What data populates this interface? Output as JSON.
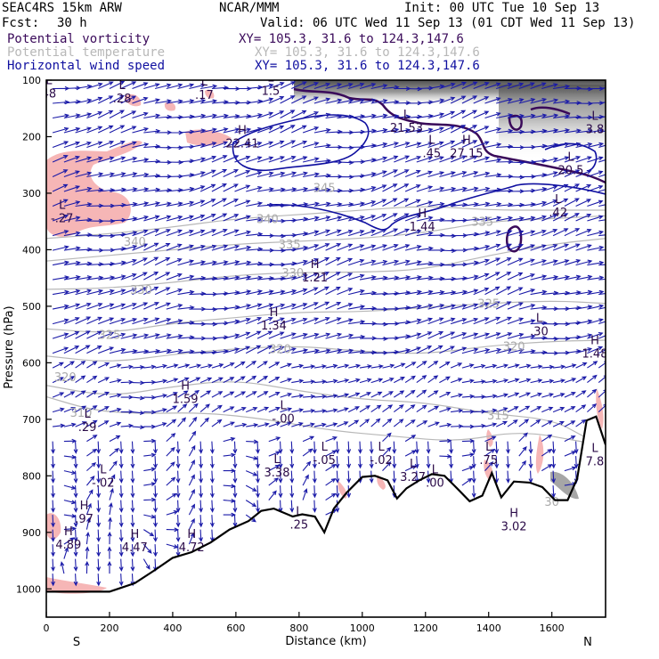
{
  "header": {
    "model": "SEAC4RS 15km ARW",
    "org": "NCAR/MMM",
    "init": "Init: 00 UTC Tue 10 Sep 13",
    "fcst_label": "Fcst:",
    "fcst_value": "30 h",
    "valid": "Valid: 06 UTC Wed 11 Sep 13 (01 CDT Wed 11 Sep 13)"
  },
  "legend": [
    {
      "field": "Potential vorticity",
      "xy": "XY= 105.3, 31.6 to 124.3,147.6",
      "color": "#3a0a5a"
    },
    {
      "field": "Potential temperature",
      "xy": "XY= 105.3, 31.6 to 124.3,147.6",
      "color": "#b8b8b8"
    },
    {
      "field": "Horizontal wind speed",
      "xy": "XY= 105.3, 31.6 to 124.3,147.6",
      "color": "#1010a0"
    }
  ],
  "chart_data": {
    "type": "cross-section",
    "xlabel": "Distance (km)",
    "ylabel": "Pressure (hPa)",
    "xlim": [
      0,
      1770
    ],
    "ylim": [
      1050,
      100
    ],
    "x_ticks": [
      0,
      200,
      400,
      600,
      800,
      1000,
      1200,
      1400,
      1600
    ],
    "y_ticks": [
      100,
      200,
      300,
      400,
      500,
      600,
      700,
      800,
      900,
      1000
    ],
    "left_end_label": "S",
    "right_end_label": "N",
    "terrain": [
      [
        0,
        1005
      ],
      [
        100,
        1005
      ],
      [
        200,
        1005
      ],
      [
        280,
        990
      ],
      [
        340,
        968
      ],
      [
        400,
        945
      ],
      [
        460,
        935
      ],
      [
        520,
        918
      ],
      [
        580,
        895
      ],
      [
        640,
        880
      ],
      [
        680,
        862
      ],
      [
        720,
        858
      ],
      [
        780,
        872
      ],
      [
        810,
        868
      ],
      [
        850,
        872
      ],
      [
        880,
        900
      ],
      [
        910,
        858
      ],
      [
        950,
        830
      ],
      [
        1000,
        802
      ],
      [
        1040,
        800
      ],
      [
        1080,
        808
      ],
      [
        1110,
        840
      ],
      [
        1140,
        822
      ],
      [
        1180,
        808
      ],
      [
        1220,
        797
      ],
      [
        1260,
        800
      ],
      [
        1300,
        822
      ],
      [
        1340,
        845
      ],
      [
        1380,
        835
      ],
      [
        1410,
        795
      ],
      [
        1440,
        838
      ],
      [
        1480,
        810
      ],
      [
        1530,
        812
      ],
      [
        1570,
        820
      ],
      [
        1610,
        843
      ],
      [
        1650,
        843
      ],
      [
        1680,
        805
      ],
      [
        1710,
        702
      ],
      [
        1740,
        695
      ],
      [
        1770,
        745
      ]
    ],
    "theta_isentropes": [
      {
        "level": "310",
        "points": [
          [
            0,
            660
          ],
          [
            150,
            685
          ],
          [
            300,
            690
          ],
          [
            500,
            688
          ],
          [
            700,
            700
          ],
          [
            900,
            720
          ],
          [
            1100,
            730
          ],
          [
            1300,
            740
          ],
          [
            1500,
            720
          ],
          [
            1700,
            740
          ]
        ]
      },
      {
        "level": "315",
        "points": [
          [
            0,
            640
          ],
          [
            200,
            660
          ],
          [
            400,
            642
          ],
          [
            600,
            630
          ],
          [
            800,
            650
          ],
          [
            1000,
            665
          ],
          [
            1200,
            670
          ],
          [
            1400,
            690
          ],
          [
            1600,
            700
          ],
          [
            1700,
            730
          ]
        ]
      },
      {
        "level": "320",
        "points": [
          [
            0,
            588
          ],
          [
            200,
            600
          ],
          [
            400,
            585
          ],
          [
            600,
            575
          ],
          [
            800,
            570
          ],
          [
            1000,
            580
          ],
          [
            1200,
            585
          ],
          [
            1400,
            570
          ],
          [
            1600,
            562
          ],
          [
            1770,
            560
          ]
        ]
      },
      {
        "level": "325",
        "points": [
          [
            0,
            540
          ],
          [
            200,
            548
          ],
          [
            400,
            530
          ],
          [
            600,
            520
          ],
          [
            800,
            510
          ],
          [
            1000,
            510
          ],
          [
            1200,
            502
          ],
          [
            1400,
            495
          ],
          [
            1600,
            490
          ],
          [
            1770,
            495
          ]
        ]
      },
      {
        "level": "330",
        "points": [
          [
            0,
            470
          ],
          [
            200,
            468
          ],
          [
            400,
            458
          ],
          [
            600,
            445
          ],
          [
            800,
            440
          ],
          [
            1000,
            440
          ],
          [
            1200,
            435
          ],
          [
            1400,
            410
          ],
          [
            1600,
            390
          ],
          [
            1770,
            380
          ]
        ]
      },
      {
        "level": "335",
        "points": [
          [
            0,
            420
          ],
          [
            200,
            410
          ],
          [
            400,
            400
          ],
          [
            600,
            390
          ],
          [
            800,
            385
          ],
          [
            1000,
            380
          ],
          [
            1200,
            370
          ],
          [
            1400,
            350
          ],
          [
            1600,
            345
          ],
          [
            1770,
            340
          ]
        ]
      },
      {
        "level": "340",
        "points": [
          [
            0,
            380
          ],
          [
            200,
            372
          ],
          [
            400,
            360
          ],
          [
            600,
            345
          ],
          [
            800,
            338
          ],
          [
            1000,
            330
          ],
          [
            1200,
            322
          ],
          [
            1400,
            330
          ],
          [
            1600,
            330
          ],
          [
            1770,
            330
          ]
        ]
      }
    ],
    "isentrope_labels": [
      {
        "text": "310",
        "x": 110,
        "p": 688
      },
      {
        "text": "315",
        "x": 1430,
        "p": 692
      },
      {
        "text": "320",
        "x": 60,
        "p": 625
      },
      {
        "text": "320",
        "x": 740,
        "p": 575
      },
      {
        "text": "320",
        "x": 1480,
        "p": 570
      },
      {
        "text": "325",
        "x": 200,
        "p": 550
      },
      {
        "text": "325",
        "x": 1400,
        "p": 495
      },
      {
        "text": "330",
        "x": 300,
        "p": 470
      },
      {
        "text": "330",
        "x": 780,
        "p": 440
      },
      {
        "text": "335",
        "x": 770,
        "p": 390
      },
      {
        "text": "335",
        "x": 1380,
        "p": 350
      },
      {
        "text": "340",
        "x": 280,
        "p": 385
      },
      {
        "text": "340",
        "x": 700,
        "p": 345
      },
      {
        "text": "345",
        "x": 880,
        "p": 290
      },
      {
        "text": "30",
        "x": 1600,
        "p": 845
      }
    ],
    "extrema_labels": [
      {
        "type": "L",
        "value": "48",
        "x": 8,
        "p": 120
      },
      {
        "type": "L",
        "value": ".28",
        "x": 240,
        "p": 128
      },
      {
        "type": "L",
        "value": ".17",
        "x": 500,
        "p": 122
      },
      {
        "type": "L",
        "value": "1.5",
        "x": 710,
        "p": 115
      },
      {
        "type": "H",
        "value": "22.41",
        "x": 620,
        "p": 208
      },
      {
        "type": "L",
        "value": "21.53",
        "x": 1140,
        "p": 180
      },
      {
        "type": "L",
        "value": ".45",
        "x": 1220,
        "p": 225
      },
      {
        "type": "H",
        "value": "27.15",
        "x": 1330,
        "p": 225
      },
      {
        "type": "L",
        "value": "20.5",
        "x": 1660,
        "p": 255
      },
      {
        "type": "L",
        "value": "3.8",
        "x": 1770,
        "p": 183
      },
      {
        "type": "L",
        "value": "-.27",
        "x": 50,
        "p": 340
      },
      {
        "type": "L",
        "value": ".42",
        "x": 1620,
        "p": 330
      },
      {
        "type": "H",
        "value": "1.44",
        "x": 1190,
        "p": 355
      },
      {
        "type": "H",
        "value": "1.21",
        "x": 850,
        "p": 445
      },
      {
        "type": "H",
        "value": "1.34",
        "x": 720,
        "p": 530
      },
      {
        "type": "L",
        "value": ".30",
        "x": 1560,
        "p": 540
      },
      {
        "type": "H",
        "value": "1.48",
        "x": 1740,
        "p": 580
      },
      {
        "type": "H",
        "value": "1.59",
        "x": 440,
        "p": 660
      },
      {
        "type": "L",
        "value": "-.00",
        "x": 750,
        "p": 695
      },
      {
        "type": "L",
        "value": ".29",
        "x": 130,
        "p": 710
      },
      {
        "type": "L",
        "value": "-.05",
        "x": 880,
        "p": 768
      },
      {
        "type": "L",
        "value": "-.02",
        "x": 1060,
        "p": 768
      },
      {
        "type": "L",
        "value": "3.38",
        "x": 730,
        "p": 790
      },
      {
        "type": "L",
        "value": "3.27",
        "x": 1160,
        "p": 798
      },
      {
        "type": "L",
        "value": ".00",
        "x": 1230,
        "p": 808
      },
      {
        "type": "L",
        "value": ".75",
        "x": 1400,
        "p": 768
      },
      {
        "type": "L",
        "value": "-.02",
        "x": 180,
        "p": 808
      },
      {
        "type": "L",
        "value": ".25",
        "x": 800,
        "p": 882
      },
      {
        "type": "H",
        "value": "3.02",
        "x": 1480,
        "p": 885
      },
      {
        "type": "H",
        "value": ".97",
        "x": 120,
        "p": 872
      },
      {
        "type": "H",
        "value": "4.89",
        "x": 70,
        "p": 918
      },
      {
        "type": "H",
        "value": "4.47",
        "x": 280,
        "p": 922
      },
      {
        "type": "H",
        "value": "4.72",
        "x": 460,
        "p": 922
      },
      {
        "type": "L",
        "value": "7.8",
        "x": 1760,
        "p": 770
      }
    ]
  }
}
